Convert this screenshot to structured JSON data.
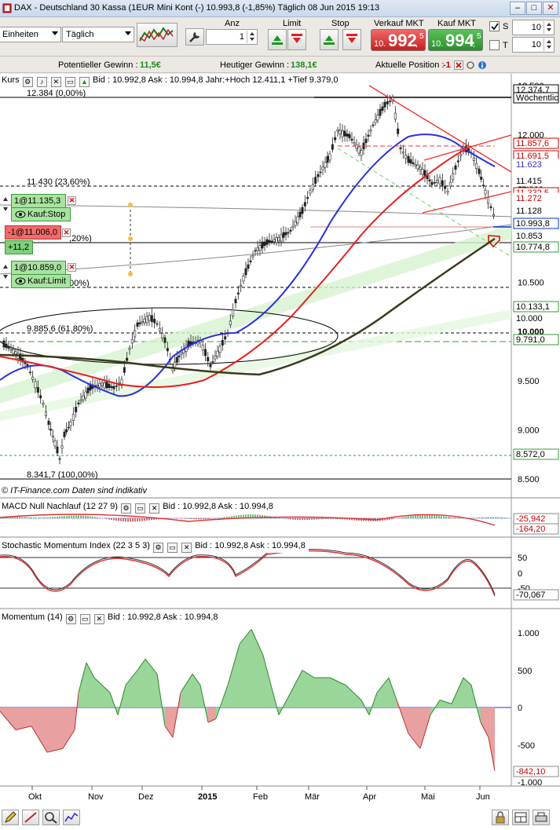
{
  "window": {
    "title": "DAX - Deutschland 30 Kassa (1EUR Mini Kont (-)    10.993,8 (-1,85%)   Täglich  08 Jun 2015 19:13",
    "btn_minimize": "–",
    "btn_maximize": "□",
    "btn_close": "✕"
  },
  "toolbar": {
    "units_select": "Einheiten",
    "period_select": "Täglich",
    "anz_label": "Anz",
    "anz_value": "1",
    "limit_label": "Limit",
    "stop_label": "Stop",
    "sell_label": "Verkauf MKT",
    "buy_label": "Kauf MKT",
    "sell_prefix": "10.",
    "sell_big": "992",
    "sell_sup": "5",
    "sell_dec": ",",
    "buy_prefix": "10.",
    "buy_big": "994",
    "buy_sup": "5",
    "buy_dec": ",",
    "s_label": "S",
    "t_label": "T",
    "s_value": "10",
    "t_value": "10"
  },
  "infobar": {
    "potential_label": "Potentieller Gewinn :",
    "potential_value": "11,5€",
    "today_label": "Heutiger Gewinn :",
    "today_value": "138,1€",
    "position_label": "Aktuelle Position :",
    "position_value": "-1"
  },
  "main_chart": {
    "header_label": "Kurs",
    "header_info": "Bid : 10.992,8 Ask : 10.994,8 Jahr:+Hoch 12.411,1 +Tief 9.379,0",
    "copyright": "© IT-Finance.com  Daten sind indikativ",
    "fib": [
      {
        "text": "12.384 (0,00%)"
      },
      {
        "text": "11.430 (23,60%)"
      },
      {
        "text": ",20%)"
      },
      {
        "text": "00%)"
      },
      {
        "text": "9.885,6 (61,80%)"
      },
      {
        "text": "8.341,7 (100,00%)"
      }
    ],
    "y_ticks": [
      "12.500",
      "12.000",
      "11.500",
      "10.500",
      "10.000",
      "9.500",
      "9.000",
      "8.500"
    ],
    "tags": [
      {
        "text": "12.374,7",
        "bg": "#ffffff",
        "fg": "#000000",
        "border": "#000000"
      },
      {
        "text": "Wöchentlic",
        "bg": "#ffffff",
        "fg": "#000000",
        "border": "#000000"
      },
      {
        "text": "11.857,6",
        "bg": "#ffffff",
        "fg": "#cc0000",
        "border": "#cc0000"
      },
      {
        "text": "11.691,5",
        "bg": "#ffffff",
        "fg": "#cc0000",
        "border": "#cc0000"
      },
      {
        "text": "11.623",
        "bg": "#ffffff",
        "fg": "#3333cc",
        "border": "#ffffff"
      },
      {
        "text": "11.415",
        "bg": "#ffffff",
        "fg": "#000000",
        "border": "#ffffff"
      },
      {
        "text": "11.332,5",
        "bg": "#ffffff",
        "fg": "#cc0000",
        "border": "#cc0000"
      },
      {
        "text": "11.272",
        "bg": "#ffffff",
        "fg": "#cc0000",
        "border": "#ffffff"
      },
      {
        "text": "11.128",
        "bg": "#ffffff",
        "fg": "#000000",
        "border": "#ffffff"
      },
      {
        "text": "10.993,8",
        "bg": "#ffffff",
        "fg": "#000000",
        "border": "#0033cc"
      },
      {
        "text": "10.853",
        "bg": "#ffffff",
        "fg": "#000000",
        "border": "#ffffff"
      },
      {
        "text": "10.774,8",
        "bg": "#ffffff",
        "fg": "#000000",
        "border": "#3a9a3a"
      },
      {
        "text": "10.133,1",
        "bg": "#ffffff",
        "fg": "#000000",
        "border": "#3a9a3a"
      },
      {
        "text": "10.000",
        "bg": "#ffffff",
        "fg": "#000000",
        "border": "#ffffff"
      },
      {
        "text": "9.791,0",
        "bg": "#ffffff",
        "fg": "#000000",
        "border": "#3a9a3a"
      },
      {
        "text": "8.572,0",
        "bg": "#ffffff",
        "fg": "#000000",
        "border": "#3a9a3a"
      }
    ],
    "orders": {
      "stop_order": "1@11.135,3",
      "stop_label": "Kauf:Stop",
      "position": "-1@11.006,0",
      "position_pl": "+11,2",
      "limit_order": "1@10.859,0",
      "limit_label": "Kauf:Limit"
    }
  },
  "macd": {
    "header": "MACD Null Nachlauf (12 27 9)",
    "info": "Bid : 10.992,8 Ask : 10.994,8",
    "tag1": "-25,942",
    "tag2": "-164,20"
  },
  "stoch": {
    "header": "Stochastic Momentum Index (22 3 5 3)",
    "info": "Bid : 10.992,8 Ask : 10.994,8",
    "ticks": [
      "50",
      "0",
      "-50"
    ],
    "tag": "-70,067"
  },
  "momentum": {
    "header": "Momentum (14)",
    "info": "Bid : 10.992,8 Ask : 10.994,8",
    "ticks": [
      "1.000",
      "500",
      "0",
      "-500",
      "-1.000"
    ],
    "tag": "-842,10"
  },
  "x_axis": {
    "labels": [
      "Okt",
      "Nov",
      "Dez",
      "2015",
      "Feb",
      "Mär",
      "Apr",
      "Mai",
      "Jun"
    ]
  },
  "colors": {
    "candle": "#222222",
    "ma_blue": "#2a2fe0",
    "ma_red": "#e82020",
    "ma_dark": "#3a3a1a",
    "momentum_pos": "#9ad59a",
    "momentum_neg": "#e8a0a0"
  }
}
